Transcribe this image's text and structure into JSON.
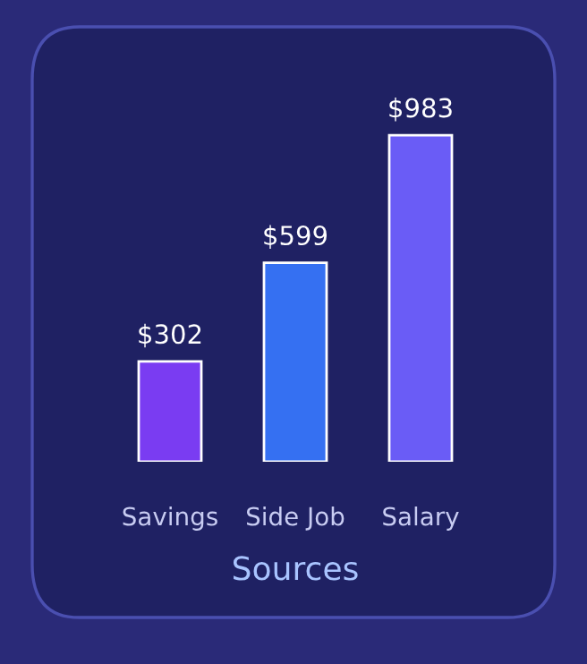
{
  "chart_data": {
    "type": "bar",
    "xlabel": "Sources",
    "categories": [
      "Savings",
      "Side Job",
      "Salary"
    ],
    "values": [
      302,
      599,
      983
    ],
    "colors": [
      "#7a3cf2",
      "#3570f2",
      "#6a5cf6"
    ],
    "value_labels": [
      "$302",
      "$599",
      "$983"
    ]
  }
}
